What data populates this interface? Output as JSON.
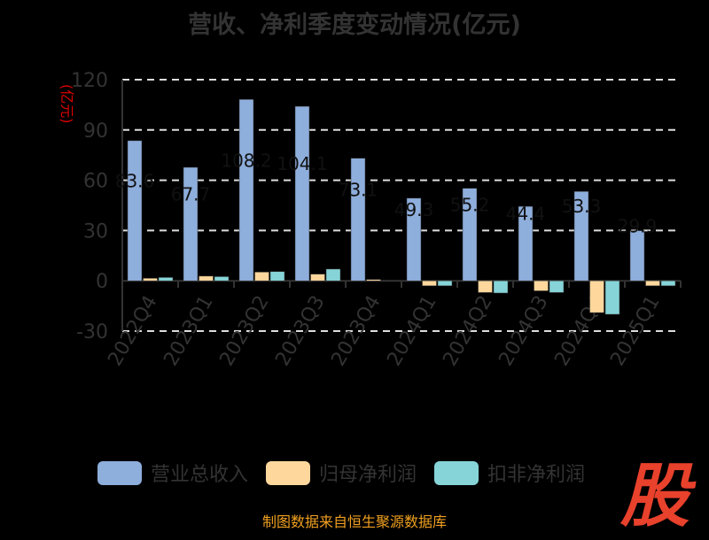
{
  "chart_data": {
    "type": "bar",
    "title": "营收、净利季度变动情况(亿元)",
    "ylabel": "(亿元)",
    "ylim": [
      -30,
      120
    ],
    "yticks": [
      -30,
      0,
      30,
      60,
      90,
      120
    ],
    "categories": [
      "2022Q4",
      "2023Q1",
      "2023Q2",
      "2023Q3",
      "2023Q4",
      "2024Q1",
      "2024Q2",
      "2024Q3",
      "2024Q4",
      "2025Q1"
    ],
    "series": [
      {
        "name": "营业总收入",
        "color": "#8eaedc",
        "values": [
          83.6,
          67.7,
          108.2,
          104.1,
          73.1,
          49.3,
          55.2,
          44.4,
          53.3,
          29.9
        ]
      },
      {
        "name": "归母净利润",
        "color": "#fdd79c",
        "values": [
          1.5,
          2.8,
          5.2,
          4.0,
          0.8,
          -3.0,
          -7.0,
          -6.0,
          -19.0,
          -3.0
        ]
      },
      {
        "name": "扣非净利润",
        "color": "#86d4d8",
        "values": [
          2.0,
          2.5,
          5.5,
          7.0,
          0.1,
          -3.0,
          -7.3,
          -7.0,
          -20.0,
          -3.0
        ]
      }
    ],
    "grid": true,
    "legend": "bottom"
  },
  "logo": "股",
  "footer": "制图数据来自恒生聚源数据库"
}
